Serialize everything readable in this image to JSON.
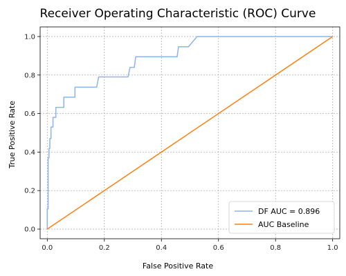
{
  "chart_data": {
    "type": "line",
    "title": "Receiver Operating Characteristic (ROC) Curve",
    "xlabel": "False Positive Rate",
    "ylabel": "True Positive Rate",
    "xlim": [
      -0.025,
      1.025
    ],
    "ylim": [
      -0.05,
      1.05
    ],
    "xticks": [
      "0.0",
      "0.2",
      "0.4",
      "0.6",
      "0.8",
      "1.0"
    ],
    "yticks": [
      "0.0",
      "0.2",
      "0.4",
      "0.6",
      "0.8",
      "1.0"
    ],
    "grid": true,
    "legend_position": "bottom-right",
    "series": [
      {
        "name": "DF AUC = 0.896",
        "color": "#8ab4f0",
        "x": [
          0.0,
          0.0,
          0.003,
          0.003,
          0.006,
          0.006,
          0.009,
          0.009,
          0.013,
          0.013,
          0.02,
          0.02,
          0.03,
          0.03,
          0.058,
          0.058,
          0.097,
          0.097,
          0.173,
          0.18,
          0.18,
          0.283,
          0.29,
          0.29,
          0.305,
          0.31,
          0.31,
          0.455,
          0.46,
          0.46,
          0.495,
          0.525,
          1.0
        ],
        "y": [
          0.0,
          0.105,
          0.105,
          0.37,
          0.37,
          0.42,
          0.42,
          0.47,
          0.47,
          0.53,
          0.53,
          0.58,
          0.58,
          0.632,
          0.632,
          0.685,
          0.685,
          0.737,
          0.737,
          0.79,
          0.79,
          0.79,
          0.84,
          0.84,
          0.84,
          0.895,
          0.895,
          0.895,
          0.947,
          0.947,
          0.947,
          1.0,
          1.0
        ]
      },
      {
        "name": "AUC Baseline",
        "color": "#ff7f0e",
        "x": [
          0.0,
          1.0
        ],
        "y": [
          0.0,
          1.0
        ]
      }
    ]
  }
}
